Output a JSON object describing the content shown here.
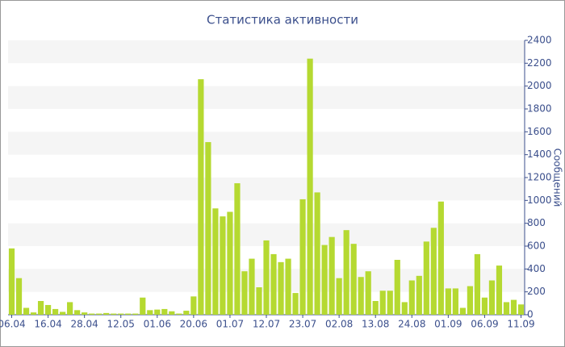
{
  "chart_data": {
    "type": "bar",
    "title": "Статистика активности",
    "y_label": "Сообщений",
    "categories": [
      "06.04",
      null,
      null,
      null,
      null,
      "16.04",
      null,
      null,
      null,
      null,
      "28.04",
      null,
      null,
      null,
      null,
      "12.05",
      null,
      null,
      null,
      null,
      "01.06",
      null,
      null,
      null,
      null,
      "20.06",
      null,
      null,
      null,
      null,
      "01.07",
      null,
      null,
      null,
      null,
      "12.07",
      null,
      null,
      null,
      null,
      "23.07",
      null,
      null,
      null,
      null,
      "02.08",
      null,
      null,
      null,
      null,
      "13.08",
      null,
      null,
      null,
      null,
      "24.08",
      null,
      null,
      null,
      null,
      "01.09",
      null,
      null,
      null,
      null,
      "06.09",
      null,
      null,
      null,
      null,
      "11.09"
    ],
    "values": [
      580,
      320,
      60,
      20,
      120,
      85,
      50,
      25,
      110,
      40,
      20,
      10,
      10,
      15,
      10,
      10,
      10,
      10,
      150,
      40,
      45,
      50,
      30,
      10,
      35,
      160,
      2060,
      1510,
      930,
      860,
      900,
      1150,
      380,
      490,
      240,
      650,
      530,
      460,
      490,
      190,
      1010,
      2240,
      1070,
      610,
      680,
      320,
      740,
      620,
      330,
      380,
      120,
      210,
      210,
      480,
      110,
      300,
      340,
      640,
      760,
      990,
      230,
      230,
      60,
      250,
      530,
      150,
      300,
      430,
      110,
      130,
      90
    ],
    "color": "#b5d931",
    "ylim": [
      0,
      2400
    ],
    "yticks": [
      0,
      200,
      400,
      600,
      800,
      1000,
      1200,
      1400,
      1600,
      1800,
      2000,
      2200,
      2400
    ],
    "grid": true
  }
}
